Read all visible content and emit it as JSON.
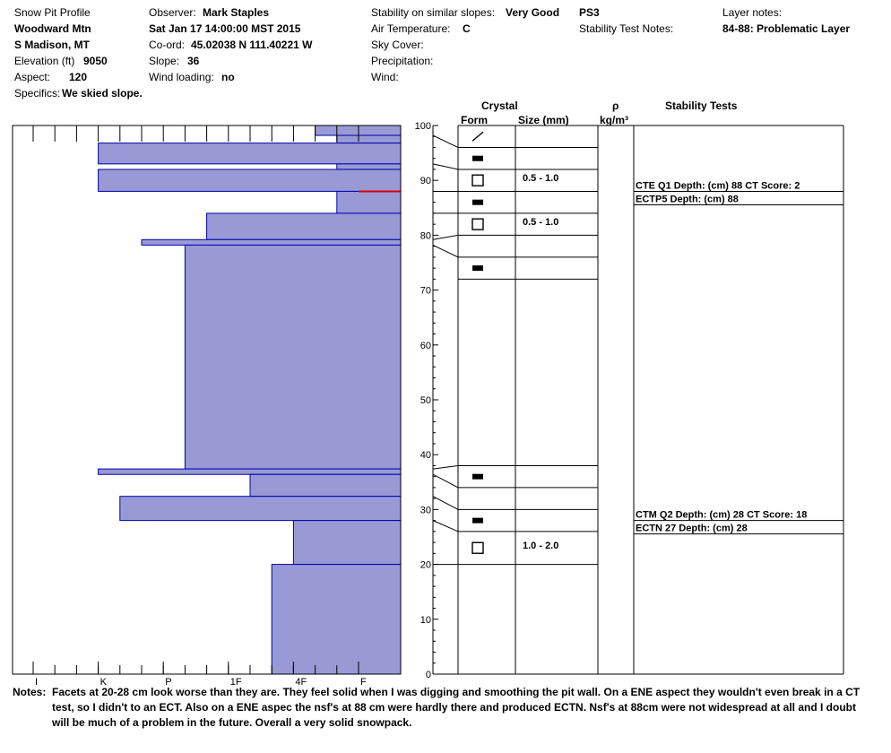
{
  "header": {
    "title": "Snow Pit Profile",
    "location": "Woodward Mtn",
    "region": "S Madison, MT",
    "elevation_label": "Elevation (ft)",
    "elevation_value": "9050",
    "aspect_label": "Aspect:",
    "aspect_value": "120",
    "specifics_label": "Specifics:",
    "specifics_value": "We skied slope.",
    "observer_label": "Observer:",
    "observer_value": "Mark Staples",
    "datetime": "Sat Jan 17 14:00:00 MST 2015",
    "coord_label": "Co-ord:",
    "coord_value": "45.02038 N 111.40221 W",
    "slope_label": "Slope:",
    "slope_value": "36",
    "wind_loading_label": "Wind loading:",
    "wind_loading_value": "no",
    "stability_label": "Stability on similar slopes:",
    "stability_value": "Very Good",
    "ps": "PS3",
    "air_temp_label": "Air Temperature:",
    "air_temp_value": "C",
    "sky_label": "Sky Cover:",
    "precip_label": "Precipitation:",
    "wind_label": "Wind:",
    "stability_notes_label": "Stability Test Notes:",
    "layer_notes_label": "Layer notes:",
    "layer_notes_value": "84-88: Problematic Layer"
  },
  "columns": {
    "crystal": "Crystal",
    "form": "Form",
    "size": "Size (mm)",
    "rho": "ρ",
    "density_unit": "kg/m³",
    "stability_tests": "Stability Tests"
  },
  "colors": {
    "hardness_fill": "#9999d6",
    "hardness_edge": "#0000aa",
    "weak_layer": "#dd0000"
  },
  "chart_data": {
    "type": "bar",
    "depth_axis": {
      "min": 0,
      "max": 100,
      "ticks": [
        0,
        10,
        20,
        30,
        40,
        50,
        60,
        70,
        80,
        90,
        100
      ]
    },
    "hardness_axis": {
      "labels": [
        "I",
        "K",
        "P",
        "1F",
        "4F",
        "F"
      ],
      "categories": [
        "F",
        "F+",
        "4F-",
        "4F",
        "4F+",
        "1F-",
        "1F",
        "1F+",
        "P-",
        "P",
        "P+",
        "K-",
        "K",
        "K+",
        "I-",
        "I"
      ]
    },
    "hardness_layers": [
      {
        "top": 100,
        "bottom": 98.2,
        "hardness_index": 2
      },
      {
        "top": 98.2,
        "bottom": 96.8,
        "hardness_index": 1
      },
      {
        "top": 96.8,
        "bottom": 93,
        "hardness_index": 12
      },
      {
        "top": 93,
        "bottom": 92,
        "hardness_index": 1
      },
      {
        "top": 92,
        "bottom": 88,
        "hardness_index": 12
      },
      {
        "top": 88,
        "bottom": 84,
        "hardness_index": 1
      },
      {
        "top": 84,
        "bottom": 79.2,
        "hardness_index": 7
      },
      {
        "top": 79.2,
        "bottom": 78.2,
        "hardness_index": 10
      },
      {
        "top": 78.2,
        "bottom": 37.4,
        "hardness_index": 8
      },
      {
        "top": 37.4,
        "bottom": 36.4,
        "hardness_index": 12
      },
      {
        "top": 36.4,
        "bottom": 32.4,
        "hardness_index": 5
      },
      {
        "top": 32.4,
        "bottom": 28,
        "hardness_index": 11
      },
      {
        "top": 28,
        "bottom": 20,
        "hardness_index": 3
      },
      {
        "top": 20,
        "bottom": 0,
        "hardness_index": 4
      }
    ],
    "weak_layer_depth": 88,
    "grain_layers": [
      {
        "top": 100,
        "bottom": 96,
        "form": "slash",
        "size": ""
      },
      {
        "top": 96,
        "bottom": 92,
        "form": "filled-rect",
        "size": ""
      },
      {
        "top": 92,
        "bottom": 88,
        "form": "open-square",
        "size": "0.5 - 1.0"
      },
      {
        "top": 88,
        "bottom": 84,
        "form": "filled-rect",
        "size": ""
      },
      {
        "top": 84,
        "bottom": 80,
        "form": "open-square",
        "size": "0.5 - 1.0"
      },
      {
        "top": 80,
        "bottom": 76,
        "form": "",
        "size": ""
      },
      {
        "top": 76,
        "bottom": 72,
        "form": "filled-rect",
        "size": ""
      },
      {
        "top": 72,
        "bottom": 38,
        "form": "",
        "size": ""
      },
      {
        "top": 38,
        "bottom": 34,
        "form": "filled-rect",
        "size": ""
      },
      {
        "top": 34,
        "bottom": 30,
        "form": "",
        "size": ""
      },
      {
        "top": 30,
        "bottom": 26,
        "form": "filled-rect",
        "size": ""
      },
      {
        "top": 26,
        "bottom": 20,
        "form": "open-square",
        "size": "1.0 - 2.0"
      }
    ],
    "connector_layers": [
      {
        "depth": 98.2,
        "row_boundary": 96
      },
      {
        "depth": 93,
        "row_boundary": 92
      },
      {
        "depth": 88,
        "row_boundary": 88
      },
      {
        "depth": 84,
        "row_boundary": 84
      },
      {
        "depth": 79.2,
        "row_boundary": 80
      },
      {
        "depth": 78.2,
        "row_boundary": 76
      },
      {
        "depth": 37.4,
        "row_boundary": 38
      },
      {
        "depth": 36.4,
        "row_boundary": 34
      },
      {
        "depth": 32.4,
        "row_boundary": 30
      },
      {
        "depth": 28,
        "row_boundary": 26
      },
      {
        "depth": 20,
        "row_boundary": 20
      }
    ],
    "stability_tests": [
      {
        "depth": 88,
        "lines": [
          "CTE Q1 Depth: (cm) 88 CT Score: 2",
          "ECTP5   Depth: (cm) 88"
        ]
      },
      {
        "depth": 28,
        "lines": [
          "CTM Q2 Depth: (cm) 28 CT Score: 18",
          "ECTN 27   Depth: (cm) 28"
        ]
      }
    ]
  },
  "notes": {
    "label": "Notes:",
    "text": "Facets at 20-28 cm look worse than they are. They feel solid when I was digging and smoothing the pit wall. On a ENE aspect they wouldn't even break in a CT test, so I didn't to an ECT. Also on a ENE aspec the nsf's at 88 cm were hardly there and produced ECTN. Nsf's at 88cm were not widespread at all and I doubt will be much of a problem in the future. Overall a very solid snowpack."
  }
}
